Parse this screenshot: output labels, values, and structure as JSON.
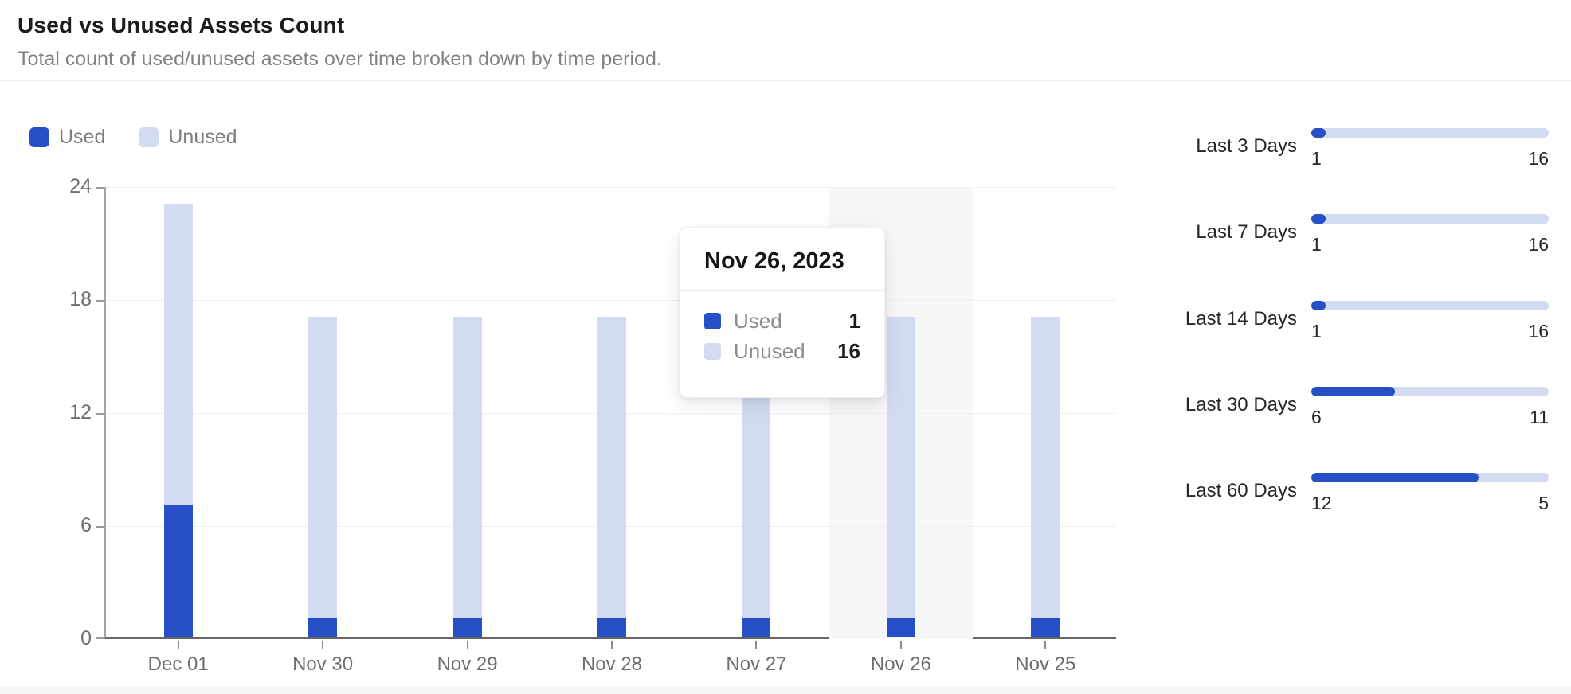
{
  "header": {
    "title": "Used vs Unused Assets Count",
    "subtitle": "Total count of used/unused assets over time broken down by time period."
  },
  "colors": {
    "used": "#2850c6",
    "unused": "#d2dbf0",
    "highlight_band": "#f7f7f8",
    "gridline": "#f0f0f1",
    "axis": "#666666"
  },
  "legend": [
    {
      "label": "Used",
      "color": "#2850c6"
    },
    {
      "label": "Unused",
      "color": "#d2dbf0"
    }
  ],
  "chart_data": {
    "type": "bar",
    "stacked": true,
    "title": "Used vs Unused Assets Count",
    "xlabel": "",
    "ylabel": "",
    "categories": [
      "Dec 01",
      "Nov 30",
      "Nov 29",
      "Nov 28",
      "Nov 27",
      "Nov 26",
      "Nov 25"
    ],
    "series": [
      {
        "name": "Used",
        "color": "#2850c6",
        "values": [
          7,
          1,
          1,
          1,
          1,
          1,
          1
        ]
      },
      {
        "name": "Unused",
        "color": "#d2dbf0",
        "values": [
          16,
          16,
          16,
          16,
          16,
          16,
          16
        ]
      }
    ],
    "y_ticks": [
      0,
      6,
      12,
      18,
      24
    ],
    "ylim": [
      0,
      24
    ],
    "grid": "horizontal",
    "legend_position": "top-left",
    "highlighted_category": "Nov 26"
  },
  "tooltip": {
    "date": "Nov 26, 2023",
    "rows": [
      {
        "label": "Used",
        "value": "1",
        "color": "#2850c6"
      },
      {
        "label": "Unused",
        "value": "16",
        "color": "#d2dbf0"
      }
    ]
  },
  "side_panel": {
    "rows": [
      {
        "label": "Last 3 Days",
        "used": 1,
        "unused": 16
      },
      {
        "label": "Last 7 Days",
        "used": 1,
        "unused": 16
      },
      {
        "label": "Last 14 Days",
        "used": 1,
        "unused": 16
      },
      {
        "label": "Last 30 Days",
        "used": 6,
        "unused": 11
      },
      {
        "label": "Last 60 Days",
        "used": 12,
        "unused": 5
      }
    ]
  }
}
